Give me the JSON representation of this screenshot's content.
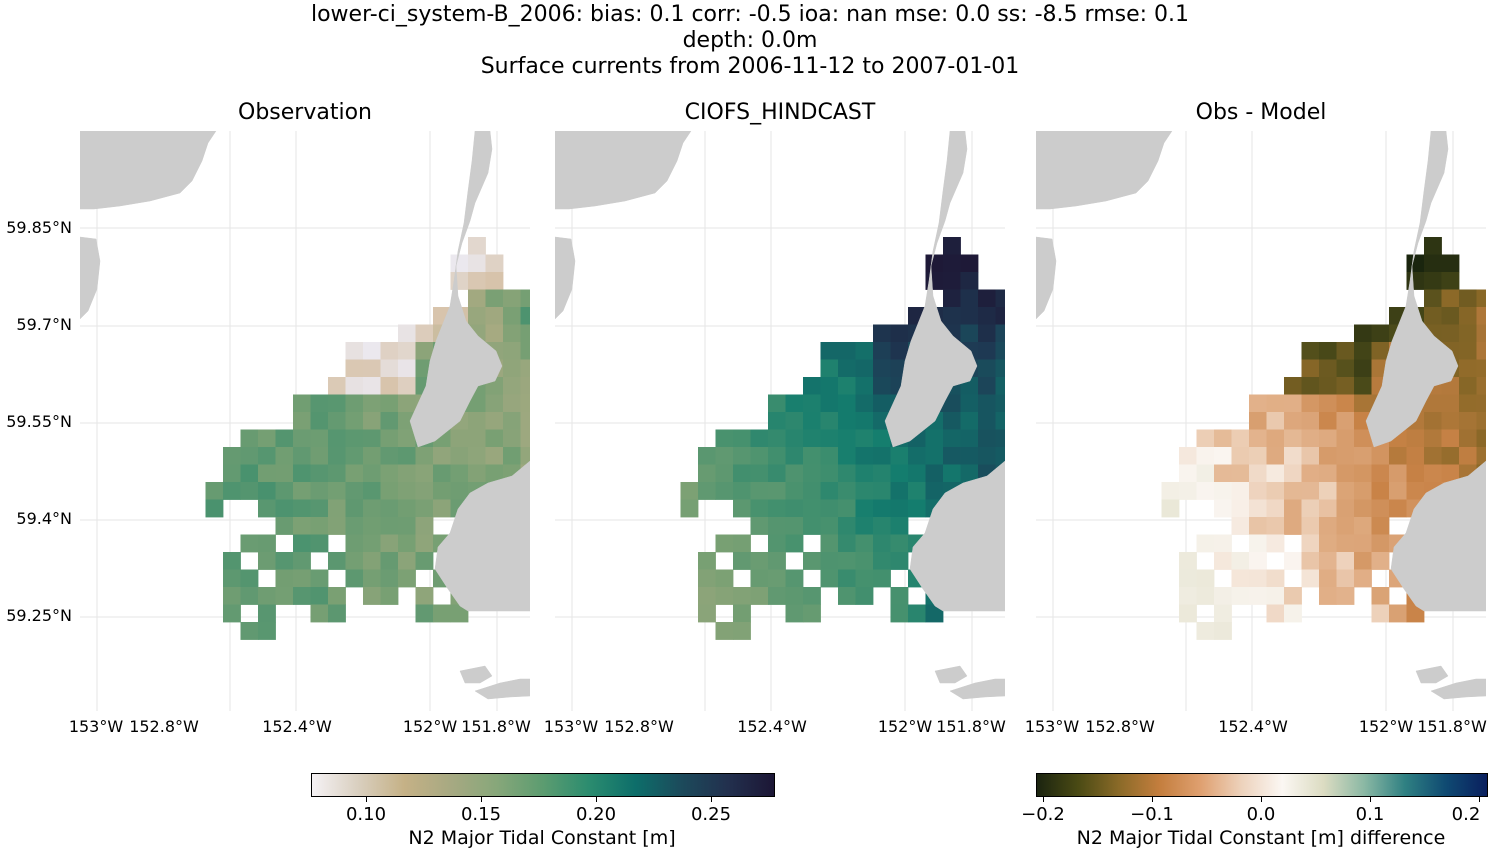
{
  "title": {
    "line1": "lower-ci_system-B_2006: bias: 0.1  corr: -0.5  ioa: nan  mse: 0.0  ss: -8.5  rmse: 0.1",
    "line2": "depth: 0.0m",
    "line3": "Surface currents from 2006-11-12 to 2007-01-01"
  },
  "panels": [
    {
      "title": "Observation"
    },
    {
      "title": "CIOFS_HINDCAST"
    },
    {
      "title": "Obs - Model"
    }
  ],
  "lat_labels": [
    "59.85°N",
    "59.7°N",
    "59.55°N",
    "59.4°N",
    "59.25°N"
  ],
  "lon_labels": [
    "153°W",
    "152.8°W",
    "152.4°W",
    "152°W",
    "151.8°W"
  ],
  "colorbar_left": {
    "ticks": [
      "0.10",
      "0.15",
      "0.20",
      "0.25"
    ],
    "label": "N2 Major Tidal Constant [m]"
  },
  "colorbar_right": {
    "ticks": [
      "−0.2",
      "−0.1",
      "0.0",
      "0.1",
      "0.2"
    ],
    "label": "N2 Major Tidal Constant [m] difference"
  },
  "colors": {
    "land": "#cccccc",
    "grid": "#e6e6e6"
  }
}
